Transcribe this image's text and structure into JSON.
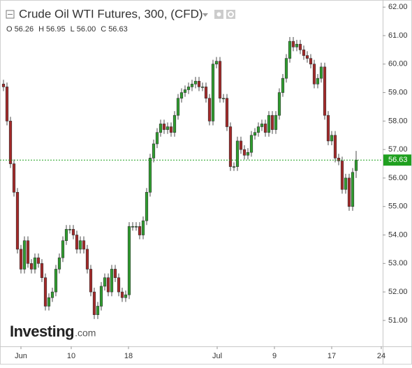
{
  "chart_data": {
    "type": "candlestick",
    "title": "Crude Oil WTI Futures, 300, (CFD)",
    "ohlc_header": [
      {
        "name": "O",
        "label": "56.26"
      },
      {
        "name": "H",
        "label": "56.95"
      },
      {
        "name": "L",
        "label": "56.00"
      },
      {
        "name": "C",
        "label": "56.63"
      }
    ],
    "watermark": "Investing",
    "watermark_suffix": ".com",
    "up_color": "#2f9e2f",
    "down_color": "#a52a2a",
    "last_price_color": "#1fa01f",
    "xlim": [
      -1,
      108.6
    ],
    "ylim": [
      50.09,
      62.25
    ],
    "xticks": [
      {
        "value": 5,
        "label": "Jun"
      },
      {
        "value": 19.4,
        "label": "10"
      },
      {
        "value": 35.8,
        "label": "18"
      },
      {
        "value": 61.2,
        "label": "Jul"
      },
      {
        "value": 77.6,
        "label": "9"
      },
      {
        "value": 94,
        "label": "17"
      },
      {
        "value": 108.2,
        "label": "24"
      }
    ],
    "yticks": [
      {
        "value": 51,
        "label": "51.00"
      },
      {
        "value": 52,
        "label": "52.00"
      },
      {
        "value": 53,
        "label": "53.00"
      },
      {
        "value": 54,
        "label": "54.00"
      },
      {
        "value": 55,
        "label": "55.00"
      },
      {
        "value": 56,
        "label": "56.00"
      },
      {
        "value": 57,
        "label": "57.00"
      },
      {
        "value": 58,
        "label": "58.00"
      },
      {
        "value": 59,
        "label": "59.00"
      },
      {
        "value": 60,
        "label": "60.00"
      },
      {
        "value": 61,
        "label": "61.00"
      },
      {
        "value": 62,
        "label": "62.00"
      }
    ],
    "x": [
      0,
      1,
      2,
      3,
      4,
      5,
      6,
      7,
      8,
      9,
      10,
      11,
      12,
      13,
      14,
      15,
      16,
      17,
      18,
      19,
      20,
      21,
      22,
      23,
      24,
      25,
      26,
      27,
      28,
      29,
      30,
      31,
      32,
      33,
      34,
      35,
      36,
      37,
      38,
      39,
      40,
      41,
      42,
      43,
      44,
      45,
      46,
      47,
      48,
      49,
      50,
      51,
      52,
      53,
      54,
      55,
      56,
      57,
      58,
      59,
      60,
      61,
      62,
      63,
      64,
      65,
      66,
      67,
      68,
      69,
      70,
      71,
      72,
      73,
      74,
      75,
      76,
      77,
      78,
      79,
      80,
      81,
      82,
      83,
      84,
      85,
      86,
      87,
      88,
      89,
      90,
      91,
      92,
      93,
      94,
      95,
      96,
      97,
      98,
      99,
      100,
      101
    ],
    "open": [
      59.3,
      59.2,
      58.0,
      56.5,
      55.5,
      53.5,
      52.8,
      53.8,
      53.0,
      52.8,
      53.2,
      53.0,
      52.5,
      51.5,
      51.8,
      52.0,
      52.8,
      53.2,
      53.8,
      54.2,
      54.2,
      54.0,
      53.5,
      53.8,
      53.5,
      52.8,
      52.0,
      51.2,
      51.5,
      52.2,
      52.5,
      52.0,
      52.8,
      52.5,
      52.0,
      51.8,
      51.9,
      54.3,
      54.3,
      54.3,
      54.0,
      54.5,
      55.5,
      56.7,
      57.2,
      57.6,
      57.9,
      57.7,
      57.8,
      57.6,
      58.2,
      58.8,
      59.0,
      59.1,
      59.2,
      59.3,
      59.4,
      59.2,
      59.2,
      58.8,
      58.0,
      60.0,
      60.1,
      58.8,
      58.8,
      57.8,
      56.4,
      56.4,
      57.3,
      57.0,
      56.8,
      56.9,
      57.5,
      57.6,
      57.8,
      57.9,
      57.6,
      58.2,
      57.7,
      58.2,
      59.0,
      59.5,
      60.2,
      60.8,
      60.6,
      60.7,
      60.5,
      60.3,
      60.2,
      60.0,
      59.3,
      59.5,
      59.9,
      58.2,
      57.3,
      57.5,
      56.7,
      56.6,
      55.6,
      56.0,
      55.0,
      56.26
    ],
    "high": [
      59.45,
      59.35,
      58.15,
      56.65,
      55.65,
      53.65,
      53.95,
      53.95,
      53.15,
      53.35,
      53.35,
      53.15,
      52.65,
      51.95,
      52.15,
      52.95,
      53.35,
      53.95,
      54.35,
      54.35,
      54.35,
      54.15,
      53.95,
      53.95,
      53.65,
      52.95,
      52.15,
      51.65,
      52.35,
      52.65,
      52.65,
      52.95,
      52.95,
      52.65,
      52.15,
      52.05,
      54.45,
      54.45,
      54.45,
      54.45,
      54.65,
      55.65,
      56.85,
      57.35,
      57.75,
      58.05,
      58.05,
      57.95,
      57.95,
      58.35,
      58.95,
      59.15,
      59.25,
      59.35,
      59.45,
      59.55,
      59.55,
      59.35,
      59.35,
      58.95,
      60.15,
      60.25,
      60.25,
      58.95,
      58.95,
      57.95,
      56.55,
      57.45,
      57.45,
      57.15,
      57.05,
      57.65,
      57.75,
      57.95,
      58.05,
      58.05,
      58.35,
      58.35,
      58.35,
      59.15,
      59.65,
      60.35,
      60.95,
      60.95,
      60.85,
      60.85,
      60.65,
      60.45,
      60.35,
      60.15,
      59.65,
      60.05,
      60.05,
      58.35,
      57.65,
      57.65,
      56.85,
      56.75,
      56.15,
      56.15,
      56.35,
      56.95
    ],
    "low": [
      59.05,
      57.85,
      56.35,
      55.35,
      53.35,
      52.65,
      52.65,
      52.85,
      52.65,
      52.65,
      52.85,
      52.35,
      51.35,
      51.35,
      51.65,
      51.85,
      52.65,
      53.05,
      53.65,
      54.05,
      53.85,
      53.35,
      53.35,
      53.35,
      52.65,
      51.85,
      51.05,
      51.05,
      51.35,
      52.05,
      51.85,
      51.85,
      52.35,
      51.85,
      51.65,
      51.65,
      51.75,
      54.15,
      54.15,
      53.85,
      53.85,
      54.35,
      55.35,
      56.55,
      57.05,
      57.45,
      57.55,
      57.55,
      57.45,
      57.45,
      58.05,
      58.65,
      58.85,
      58.95,
      59.05,
      59.15,
      59.05,
      59.05,
      58.65,
      57.85,
      57.85,
      59.85,
      58.65,
      58.65,
      57.65,
      56.25,
      56.25,
      56.25,
      56.85,
      56.65,
      56.65,
      56.75,
      57.35,
      57.45,
      57.65,
      57.45,
      57.45,
      57.55,
      57.55,
      58.05,
      58.85,
      59.35,
      60.05,
      60.45,
      60.45,
      60.35,
      60.15,
      60.05,
      59.85,
      59.15,
      59.15,
      59.35,
      58.05,
      57.15,
      57.15,
      56.55,
      56.45,
      55.45,
      55.45,
      54.85,
      54.85,
      56.0
    ],
    "close": [
      59.2,
      58.0,
      56.5,
      55.5,
      53.5,
      52.8,
      53.8,
      53.0,
      52.8,
      53.2,
      53.0,
      52.5,
      51.5,
      51.8,
      52.0,
      52.8,
      53.2,
      53.8,
      54.2,
      54.2,
      54.0,
      53.5,
      53.8,
      53.5,
      52.8,
      52.0,
      51.2,
      51.5,
      52.2,
      52.5,
      52.0,
      52.8,
      52.5,
      52.0,
      51.8,
      51.9,
      54.3,
      54.3,
      54.3,
      54.0,
      54.5,
      55.5,
      56.7,
      57.2,
      57.6,
      57.9,
      57.7,
      57.8,
      57.6,
      58.2,
      58.8,
      59.0,
      59.1,
      59.2,
      59.3,
      59.4,
      59.2,
      59.2,
      58.8,
      58.0,
      60.0,
      60.1,
      58.8,
      58.8,
      57.8,
      56.4,
      56.4,
      57.3,
      57.0,
      56.8,
      56.9,
      57.5,
      57.6,
      57.8,
      57.9,
      57.6,
      58.2,
      57.7,
      58.2,
      59.0,
      59.5,
      60.2,
      60.8,
      60.6,
      60.7,
      60.5,
      60.3,
      60.2,
      60.0,
      59.3,
      59.5,
      59.9,
      58.2,
      57.3,
      57.5,
      56.7,
      56.6,
      55.6,
      56.0,
      55.0,
      56.2,
      56.63
    ]
  }
}
